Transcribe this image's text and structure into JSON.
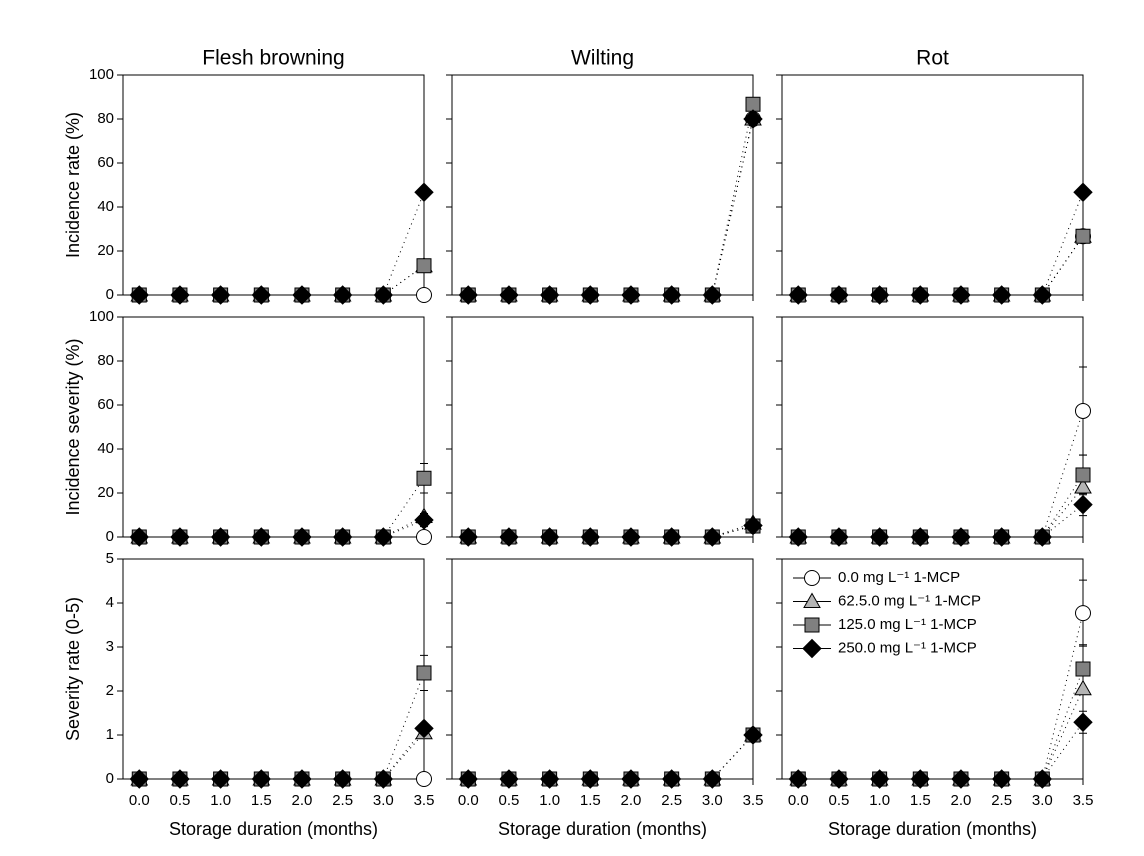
{
  "chart_data": [
    {
      "type": "line",
      "title": "Flesh browning",
      "ylabel": "Incidence rate (%)",
      "x": [
        0,
        0.5,
        1,
        1.5,
        2,
        2.5,
        3,
        3.5
      ],
      "xlim": [
        -0.2,
        3.5
      ],
      "xticks": [
        0,
        0.5,
        1,
        1.5,
        2,
        2.5,
        3,
        3.5
      ],
      "x_tick_labels": false,
      "ylim": [
        0,
        100
      ],
      "yticks": [
        0,
        20,
        40,
        60,
        80,
        100
      ],
      "y_tick_labels": true,
      "series": [
        {
          "marker": "circle",
          "color": "#ffffff",
          "values": [
            0,
            0,
            0,
            0,
            0,
            0,
            0,
            0
          ]
        },
        {
          "marker": "triangle",
          "color": "#b4b4b4",
          "values": [
            0,
            0,
            0,
            0,
            0,
            0,
            0,
            13.3
          ]
        },
        {
          "marker": "square",
          "color": "#808080",
          "values": [
            0,
            0,
            0,
            0,
            0,
            0,
            0,
            13.3
          ]
        },
        {
          "marker": "diamond",
          "color": "#000000",
          "values": [
            0,
            0,
            0,
            0,
            0,
            0,
            0,
            46.7
          ]
        }
      ]
    },
    {
      "type": "line",
      "title": "Wilting",
      "x": [
        0,
        0.5,
        1,
        1.5,
        2,
        2.5,
        3,
        3.5
      ],
      "xlim": [
        -0.2,
        3.5
      ],
      "xticks": [
        0,
        0.5,
        1,
        1.5,
        2,
        2.5,
        3,
        3.5
      ],
      "x_tick_labels": false,
      "ylim": [
        0,
        100
      ],
      "yticks": [
        0,
        20,
        40,
        60,
        80,
        100
      ],
      "y_tick_labels": false,
      "series": [
        {
          "marker": "circle",
          "color": "#ffffff",
          "values": [
            0,
            0,
            0,
            0,
            0,
            0,
            0,
            80
          ]
        },
        {
          "marker": "triangle",
          "color": "#b4b4b4",
          "values": [
            0,
            0,
            0,
            0,
            0,
            0,
            0,
            80
          ]
        },
        {
          "marker": "square",
          "color": "#808080",
          "values": [
            0,
            0,
            0,
            0,
            0,
            0,
            0,
            86.7
          ]
        },
        {
          "marker": "diamond",
          "color": "#000000",
          "values": [
            0,
            0,
            0,
            0,
            0,
            0,
            0,
            80
          ]
        }
      ]
    },
    {
      "type": "line",
      "title": "Rot",
      "x": [
        0,
        0.5,
        1,
        1.5,
        2,
        2.5,
        3,
        3.5
      ],
      "xlim": [
        -0.2,
        3.5
      ],
      "xticks": [
        0,
        0.5,
        1,
        1.5,
        2,
        2.5,
        3,
        3.5
      ],
      "x_tick_labels": false,
      "ylim": [
        0,
        100
      ],
      "yticks": [
        0,
        20,
        40,
        60,
        80,
        100
      ],
      "y_tick_labels": false,
      "series": [
        {
          "marker": "circle",
          "color": "#ffffff",
          "values": [
            0,
            0,
            0,
            0,
            0,
            0,
            0,
            26.7
          ]
        },
        {
          "marker": "triangle",
          "color": "#b4b4b4",
          "values": [
            0,
            0,
            0,
            0,
            0,
            0,
            0,
            26.7
          ]
        },
        {
          "marker": "square",
          "color": "#808080",
          "values": [
            0,
            0,
            0,
            0,
            0,
            0,
            0,
            26.7
          ]
        },
        {
          "marker": "diamond",
          "color": "#000000",
          "values": [
            0,
            0,
            0,
            0,
            0,
            0,
            0,
            46.7
          ]
        }
      ]
    },
    {
      "type": "line",
      "ylabel": "Incidence severity (%)",
      "x": [
        0,
        0.5,
        1,
        1.5,
        2,
        2.5,
        3,
        3.5
      ],
      "xlim": [
        -0.2,
        3.5
      ],
      "xticks": [
        0,
        0.5,
        1,
        1.5,
        2,
        2.5,
        3,
        3.5
      ],
      "x_tick_labels": false,
      "ylim": [
        0,
        100
      ],
      "yticks": [
        0,
        20,
        40,
        60,
        80,
        100
      ],
      "y_tick_labels": true,
      "series": [
        {
          "marker": "circle",
          "color": "#ffffff",
          "values": [
            0,
            0,
            0,
            0,
            0,
            0,
            0,
            0
          ]
        },
        {
          "marker": "triangle",
          "color": "#b4b4b4",
          "values": [
            0,
            0,
            0,
            0,
            0,
            0,
            0,
            9.3
          ]
        },
        {
          "marker": "square",
          "color": "#808080",
          "values": [
            0,
            0,
            0,
            0,
            0,
            0,
            0,
            26.7
          ],
          "errors": [
            null,
            null,
            null,
            null,
            null,
            null,
            null,
            6.7
          ]
        },
        {
          "marker": "diamond",
          "color": "#000000",
          "values": [
            0,
            0,
            0,
            0,
            0,
            0,
            0,
            7.7
          ],
          "errors": [
            null,
            null,
            null,
            null,
            null,
            null,
            null,
            3
          ]
        }
      ]
    },
    {
      "type": "line",
      "x": [
        0,
        0.5,
        1,
        1.5,
        2,
        2.5,
        3,
        3.5
      ],
      "xlim": [
        -0.2,
        3.5
      ],
      "xticks": [
        0,
        0.5,
        1,
        1.5,
        2,
        2.5,
        3,
        3.5
      ],
      "x_tick_labels": false,
      "ylim": [
        0,
        100
      ],
      "yticks": [
        0,
        20,
        40,
        60,
        80,
        100
      ],
      "y_tick_labels": false,
      "series": [
        {
          "marker": "circle",
          "color": "#ffffff",
          "values": [
            0,
            0,
            0,
            0,
            0,
            0,
            0,
            5
          ]
        },
        {
          "marker": "triangle",
          "color": "#b4b4b4",
          "values": [
            0,
            0,
            0,
            0,
            0,
            0,
            0,
            6.3
          ]
        },
        {
          "marker": "square",
          "color": "#808080",
          "values": [
            0,
            0,
            0,
            0,
            0,
            0,
            0,
            5
          ]
        },
        {
          "marker": "diamond",
          "color": "#000000",
          "values": [
            0,
            0,
            0,
            0,
            0,
            0,
            0,
            5.2
          ],
          "errors": [
            null,
            null,
            null,
            null,
            null,
            null,
            null,
            3
          ]
        }
      ]
    },
    {
      "type": "line",
      "x": [
        0,
        0.5,
        1,
        1.5,
        2,
        2.5,
        3,
        3.5
      ],
      "xlim": [
        -0.2,
        3.5
      ],
      "xticks": [
        0,
        0.5,
        1,
        1.5,
        2,
        2.5,
        3,
        3.5
      ],
      "x_tick_labels": false,
      "ylim": [
        0,
        100
      ],
      "yticks": [
        0,
        20,
        40,
        60,
        80,
        100
      ],
      "y_tick_labels": false,
      "series": [
        {
          "marker": "circle",
          "color": "#ffffff",
          "values": [
            0,
            0,
            0,
            0,
            0,
            0,
            0,
            57.3
          ],
          "errors": [
            null,
            null,
            null,
            null,
            null,
            null,
            null,
            20
          ]
        },
        {
          "marker": "triangle",
          "color": "#b4b4b4",
          "values": [
            0,
            0,
            0,
            0,
            0,
            0,
            0,
            22.7
          ]
        },
        {
          "marker": "square",
          "color": "#808080",
          "values": [
            0,
            0,
            0,
            0,
            0,
            0,
            0,
            28.2
          ],
          "errors": [
            null,
            null,
            null,
            null,
            null,
            null,
            null,
            9
          ]
        },
        {
          "marker": "diamond",
          "color": "#000000",
          "values": [
            0,
            0,
            0,
            0,
            0,
            0,
            0,
            14.7
          ],
          "errors": [
            null,
            null,
            null,
            null,
            null,
            null,
            null,
            5
          ]
        }
      ]
    },
    {
      "type": "line",
      "ylabel": "Severity rate (0-5)",
      "xlabel": "Storage duration (months)",
      "x": [
        0,
        0.5,
        1,
        1.5,
        2,
        2.5,
        3,
        3.5
      ],
      "xlim": [
        -0.2,
        3.5
      ],
      "xticks": [
        {
          "value": 0,
          "label": "0.0"
        },
        0.5,
        {
          "value": 1,
          "label": "1.0"
        },
        1.5,
        {
          "value": 2,
          "label": "2.0"
        },
        2.5,
        {
          "value": 3,
          "label": "3.0"
        },
        3.5
      ],
      "x_tick_labels": true,
      "ylim": [
        0,
        5
      ],
      "yticks": [
        0,
        1,
        2,
        3,
        4,
        5
      ],
      "y_tick_labels": true,
      "series": [
        {
          "marker": "circle",
          "color": "#ffffff",
          "values": [
            0,
            0,
            0,
            0,
            0,
            0,
            0,
            0
          ]
        },
        {
          "marker": "triangle",
          "color": "#b4b4b4",
          "values": [
            0,
            0,
            0,
            0,
            0,
            0,
            0,
            1.05
          ]
        },
        {
          "marker": "square",
          "color": "#808080",
          "values": [
            0,
            0,
            0,
            0,
            0,
            0,
            0,
            2.41
          ],
          "errors": [
            null,
            null,
            null,
            null,
            null,
            null,
            null,
            0.4
          ]
        },
        {
          "marker": "diamond",
          "color": "#000000",
          "values": [
            0,
            0,
            0,
            0,
            0,
            0,
            0,
            1.15
          ]
        }
      ]
    },
    {
      "type": "line",
      "xlabel": "Storage duration (months)",
      "x": [
        0,
        0.5,
        1,
        1.5,
        2,
        2.5,
        3,
        3.5
      ],
      "xlim": [
        -0.2,
        3.5
      ],
      "xticks": [
        {
          "value": 0,
          "label": "0.0"
        },
        0.5,
        {
          "value": 1,
          "label": "1.0"
        },
        1.5,
        {
          "value": 2,
          "label": "2.0"
        },
        2.5,
        {
          "value": 3,
          "label": "3.0"
        },
        3.5
      ],
      "x_tick_labels": true,
      "ylim": [
        0,
        5
      ],
      "yticks": [
        0,
        1,
        2,
        3,
        4,
        5
      ],
      "y_tick_labels": false,
      "series": [
        {
          "marker": "circle",
          "color": "#ffffff",
          "values": [
            0,
            0,
            0,
            0,
            0,
            0,
            0,
            1
          ]
        },
        {
          "marker": "triangle",
          "color": "#b4b4b4",
          "values": [
            0,
            0,
            0,
            0,
            0,
            0,
            0,
            1
          ]
        },
        {
          "marker": "square",
          "color": "#808080",
          "values": [
            0,
            0,
            0,
            0,
            0,
            0,
            0,
            1
          ]
        },
        {
          "marker": "diamond",
          "color": "#000000",
          "values": [
            0,
            0,
            0,
            0,
            0,
            0,
            0,
            1
          ]
        }
      ]
    },
    {
      "type": "line",
      "xlabel": "Storage duration (months)",
      "legend": "upper left",
      "x": [
        0,
        0.5,
        1,
        1.5,
        2,
        2.5,
        3,
        3.5
      ],
      "xlim": [
        -0.2,
        3.5
      ],
      "xticks": [
        {
          "value": 0,
          "label": "0.0"
        },
        0.5,
        {
          "value": 1,
          "label": "1.0"
        },
        1.5,
        {
          "value": 2,
          "label": "2.0"
        },
        2.5,
        {
          "value": 3,
          "label": "3.0"
        },
        3.5
      ],
      "x_tick_labels": true,
      "ylim": [
        0,
        5
      ],
      "yticks": [
        0,
        1,
        2,
        3,
        4,
        5
      ],
      "y_tick_labels": false,
      "series": [
        {
          "name": "0.0 mg L⁻¹ 1-MCP",
          "marker": "circle",
          "color": "#ffffff",
          "values": [
            0,
            0,
            0,
            0,
            0,
            0,
            0,
            3.77
          ],
          "errors": [
            null,
            null,
            null,
            null,
            null,
            null,
            null,
            0.75
          ]
        },
        {
          "name": "62.5.0 mg L⁻¹ 1-MCP",
          "marker": "triangle",
          "color": "#b4b4b4",
          "values": [
            0,
            0,
            0,
            0,
            0,
            0,
            0,
            2.05
          ]
        },
        {
          "name": "125.0 mg L⁻¹ 1-MCP",
          "marker": "square",
          "color": "#808080",
          "values": [
            0,
            0,
            0,
            0,
            0,
            0,
            0,
            2.5
          ],
          "errors": [
            null,
            null,
            null,
            null,
            null,
            null,
            null,
            0.55
          ]
        },
        {
          "name": "250.0 mg L⁻¹ 1-MCP",
          "marker": "diamond",
          "color": "#000000",
          "values": [
            0,
            0,
            0,
            0,
            0,
            0,
            0,
            1.29
          ],
          "errors": [
            null,
            null,
            null,
            null,
            null,
            null,
            null,
            0.25
          ]
        }
      ]
    }
  ]
}
